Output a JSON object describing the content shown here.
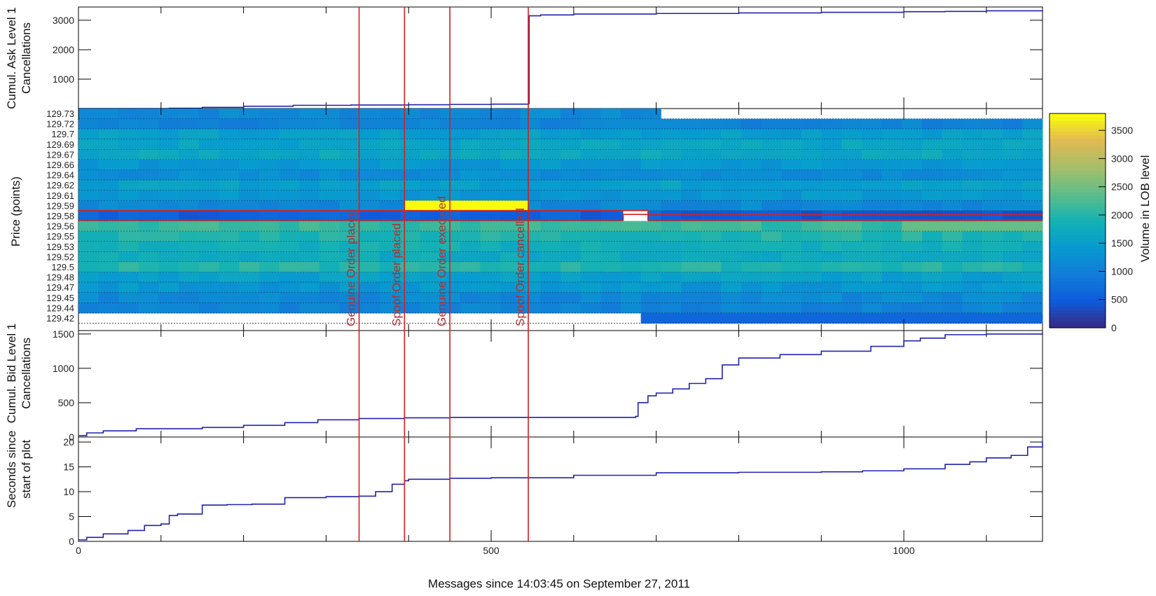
{
  "chart_data": {
    "type": "line",
    "xlabel": "Messages since 14:03:45 on September 27, 2011",
    "xlim": [
      0,
      1168
    ],
    "x_ticks": [
      0,
      500,
      1000
    ],
    "x_minor_ticks": [
      100,
      200,
      300,
      400,
      600,
      700,
      800,
      900,
      1100
    ],
    "annotation_color": "#d42020",
    "series_color": "#2222aa",
    "events": [
      {
        "label": "Genuine Order placed",
        "x": 340
      },
      {
        "label": "Spoof Order placed",
        "x": 395
      },
      {
        "label": "Genuine Order executed",
        "x": 450
      },
      {
        "label": "Spoof Order cancelled",
        "x": 545
      }
    ],
    "panels": [
      {
        "name": "ask-cancellations",
        "ylabel_lines": [
          "Cumul. Ask Level 1",
          "Cancellations"
        ],
        "ylim": [
          0,
          3450
        ],
        "yticks": [
          1000,
          2000,
          3000
        ],
        "x": [
          0,
          110,
          150,
          200,
          260,
          330,
          400,
          450,
          500,
          545,
          546,
          560,
          600,
          700,
          800,
          900,
          1000,
          1050,
          1100,
          1168
        ],
        "y": [
          0,
          10,
          40,
          80,
          110,
          120,
          130,
          140,
          150,
          165,
          3150,
          3180,
          3210,
          3230,
          3250,
          3270,
          3290,
          3300,
          3320,
          3340
        ]
      },
      {
        "name": "order-book-heatmap",
        "type": "heatmap",
        "ylabel": "Price (points)",
        "price_levels": [
          "129.73",
          "129.72",
          "129.7",
          "129.69",
          "129.67",
          "129.66",
          "129.64",
          "129.62",
          "129.61",
          "129.59",
          "129.58",
          "129.56",
          "129.55",
          "129.53",
          "129.52",
          "129.5",
          "129.48",
          "129.47",
          "129.45",
          "129.44",
          "129.42"
        ],
        "colorbar": {
          "label": "Volume in LOB level",
          "range": [
            0,
            3800
          ],
          "ticks": [
            0,
            500,
            1000,
            1500,
            2000,
            2500,
            3000,
            3500
          ]
        },
        "spoof_volume": 3800,
        "spoof_price": "129.59",
        "spoof_x_range": [
          395,
          545
        ]
      },
      {
        "name": "bid-cancellations",
        "ylabel_lines": [
          "Cumul. Bid Level 1",
          "Cancellations"
        ],
        "ylim": [
          0,
          1550
        ],
        "yticks": [
          0,
          500,
          1000,
          1500
        ],
        "x": [
          0,
          10,
          30,
          70,
          150,
          200,
          250,
          290,
          340,
          395,
          450,
          500,
          600,
          675,
          678,
          690,
          700,
          720,
          740,
          760,
          780,
          800,
          850,
          900,
          960,
          1000,
          1020,
          1050,
          1100,
          1168
        ],
        "y": [
          20,
          60,
          90,
          120,
          140,
          170,
          210,
          250,
          270,
          280,
          285,
          285,
          285,
          300,
          500,
          600,
          640,
          700,
          780,
          850,
          1050,
          1150,
          1200,
          1250,
          1320,
          1400,
          1440,
          1490,
          1500,
          1520
        ]
      },
      {
        "name": "seconds-elapsed",
        "ylabel_lines": [
          "Seconds since",
          "start of plot"
        ],
        "ylim": [
          0,
          21
        ],
        "yticks": [
          0,
          5,
          10,
          15,
          20
        ],
        "x": [
          0,
          10,
          30,
          60,
          80,
          100,
          110,
          120,
          150,
          180,
          210,
          250,
          300,
          340,
          360,
          380,
          395,
          400,
          450,
          500,
          600,
          700,
          800,
          900,
          950,
          1000,
          1050,
          1080,
          1100,
          1130,
          1150,
          1168
        ],
        "y": [
          0.3,
          0.8,
          1.5,
          2.2,
          3.2,
          3.5,
          5.2,
          5.5,
          7.3,
          7.4,
          7.5,
          8.8,
          9.0,
          9.1,
          10.0,
          11.5,
          12.2,
          12.5,
          12.7,
          12.8,
          13.3,
          13.8,
          13.9,
          14.0,
          14.2,
          14.6,
          15.5,
          16.0,
          16.8,
          17.3,
          19.0,
          20.2
        ]
      }
    ]
  }
}
